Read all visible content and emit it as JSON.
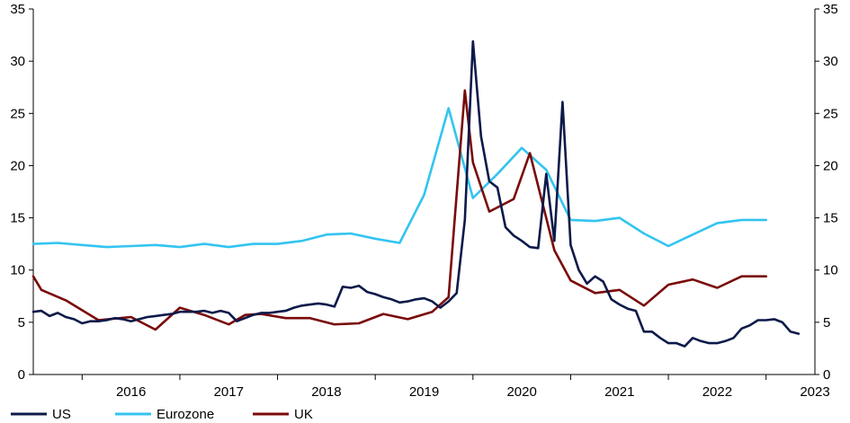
{
  "chart_data": {
    "type": "line",
    "title": "",
    "xlabel": "",
    "ylabel": "",
    "ylim": [
      0,
      35
    ],
    "yticks": [
      0,
      5,
      10,
      15,
      20,
      25,
      30,
      35
    ],
    "year_labels": [
      "2016",
      "2017",
      "2018",
      "2019",
      "2020",
      "2021",
      "2022",
      "2023"
    ],
    "grid": false,
    "legend_position": "bottom-left",
    "series": [
      {
        "name": "US",
        "color": "#0d1a4a",
        "x": [
          2015.5,
          2015.583,
          2015.667,
          2015.75,
          2015.833,
          2015.917,
          2016.0,
          2016.083,
          2016.167,
          2016.25,
          2016.333,
          2016.417,
          2016.5,
          2016.583,
          2016.667,
          2016.75,
          2016.833,
          2016.917,
          2017.0,
          2017.083,
          2017.167,
          2017.25,
          2017.333,
          2017.417,
          2017.5,
          2017.583,
          2017.667,
          2017.75,
          2017.833,
          2017.917,
          2018.0,
          2018.083,
          2018.167,
          2018.25,
          2018.333,
          2018.417,
          2018.5,
          2018.583,
          2018.667,
          2018.75,
          2018.833,
          2018.917,
          2019.0,
          2019.083,
          2019.167,
          2019.25,
          2019.333,
          2019.417,
          2019.5,
          2019.583,
          2019.667,
          2019.75,
          2019.833,
          2019.917,
          2020.0,
          2020.083,
          2020.167,
          2020.25,
          2020.333,
          2020.417,
          2020.5,
          2020.583,
          2020.667,
          2020.75,
          2020.833,
          2020.917,
          2021.0,
          2021.083,
          2021.167,
          2021.25,
          2021.333,
          2021.417,
          2021.5,
          2021.583,
          2021.667,
          2021.75,
          2021.833,
          2021.917,
          2022.0,
          2022.083,
          2022.167,
          2022.25,
          2022.333,
          2022.417,
          2022.5,
          2022.583,
          2022.667,
          2022.75,
          2022.833,
          2022.917,
          2023.0,
          2023.083,
          2023.167,
          2023.25,
          2023.333
        ],
        "y": [
          6.0,
          6.1,
          5.6,
          5.9,
          5.5,
          5.3,
          4.9,
          5.1,
          5.1,
          5.2,
          5.4,
          5.3,
          5.1,
          5.3,
          5.5,
          5.6,
          5.7,
          5.8,
          6.0,
          6.0,
          6.0,
          6.1,
          5.9,
          6.1,
          5.9,
          5.1,
          5.4,
          5.7,
          5.9,
          5.9,
          6.0,
          6.1,
          6.4,
          6.6,
          6.7,
          6.8,
          6.7,
          6.5,
          8.4,
          8.3,
          8.5,
          7.9,
          7.7,
          7.4,
          7.2,
          6.9,
          7.0,
          7.2,
          7.3,
          7.0,
          6.4,
          7.0,
          7.8,
          14.8,
          31.9,
          22.8,
          18.5,
          17.9,
          14.1,
          13.3,
          12.8,
          12.2,
          12.1,
          19.2,
          12.8,
          26.1,
          12.4,
          10.0,
          8.7,
          9.4,
          8.9,
          7.2,
          6.7,
          6.3,
          6.1,
          4.1,
          4.1,
          3.5,
          3.0,
          3.0,
          2.7,
          3.5,
          3.2,
          3.0,
          3.0,
          3.2,
          3.5,
          4.4,
          4.7,
          5.2,
          5.2,
          5.3,
          5.0,
          4.1,
          3.9
        ]
      },
      {
        "name": "Eurozone",
        "color": "#33c4f0",
        "x": [
          2015.5,
          2015.75,
          2016.0,
          2016.25,
          2016.5,
          2016.75,
          2017.0,
          2017.25,
          2017.5,
          2017.75,
          2018.0,
          2018.25,
          2018.5,
          2018.75,
          2019.0,
          2019.25,
          2019.5,
          2019.75,
          2020.0,
          2020.25,
          2020.5,
          2020.75,
          2021.0,
          2021.25,
          2021.5,
          2021.75,
          2022.0,
          2022.25,
          2022.5,
          2022.75,
          2023.0
        ],
        "y": [
          12.5,
          12.6,
          12.4,
          12.2,
          12.3,
          12.4,
          12.2,
          12.5,
          12.2,
          12.5,
          12.5,
          12.8,
          13.4,
          13.5,
          13.0,
          12.6,
          17.2,
          25.5,
          16.9,
          19.2,
          21.7,
          19.6,
          14.8,
          14.7,
          15.0,
          13.5,
          12.3,
          13.4,
          14.5,
          14.8,
          14.8
        ]
      },
      {
        "name": "UK",
        "color": "#7a0a0a",
        "x": [
          2015.5,
          2015.583,
          2015.833,
          2016.167,
          2016.5,
          2016.75,
          2017.0,
          2017.25,
          2017.5,
          2017.667,
          2017.833,
          2018.083,
          2018.333,
          2018.583,
          2018.833,
          2019.083,
          2019.333,
          2019.583,
          2019.75,
          2019.917,
          2020.0,
          2020.167,
          2020.417,
          2020.583,
          2020.833,
          2021.0,
          2021.25,
          2021.5,
          2021.75,
          2022.0,
          2022.25,
          2022.5,
          2022.75,
          2023.0
        ],
        "y": [
          9.4,
          8.1,
          7.1,
          5.2,
          5.5,
          4.3,
          6.4,
          5.7,
          4.8,
          5.7,
          5.8,
          5.4,
          5.4,
          4.8,
          4.9,
          5.8,
          5.3,
          6.0,
          7.4,
          27.2,
          20.3,
          15.6,
          16.8,
          21.2,
          11.9,
          9.0,
          7.8,
          8.1,
          6.6,
          8.6,
          9.1,
          8.3,
          9.4,
          9.4
        ]
      }
    ]
  }
}
